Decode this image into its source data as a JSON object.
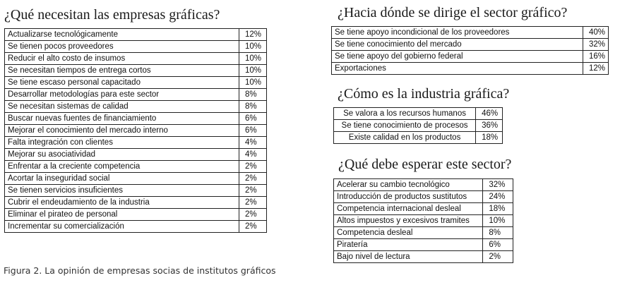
{
  "sections": [
    {
      "title": "¿Qué necesitan las empresas gráficas?",
      "rows": [
        {
          "label": "Actualizarse tecnológicamente",
          "value": "12%"
        },
        {
          "label": "Se tienen pocos proveedores",
          "value": "10%"
        },
        {
          "label": "Reducir el alto costo de insumos",
          "value": "10%"
        },
        {
          "label": "Se necesitan tiempos de entrega cortos",
          "value": "10%"
        },
        {
          "label": "Se tiene escaso personal capacitado",
          "value": "10%"
        },
        {
          "label": "Desarrollar metodologías para este sector",
          "value": "8%"
        },
        {
          "label": "Se necesitan sistemas de calidad",
          "value": "8%"
        },
        {
          "label": "Buscar nuevas fuentes de financiamiento",
          "value": "6%"
        },
        {
          "label": "Mejorar el conocimiento del mercado interno",
          "value": "6%"
        },
        {
          "label": "Falta integración con clientes",
          "value": "4%"
        },
        {
          "label": "Mejorar su asociatividad",
          "value": "4%"
        },
        {
          "label": "Enfrentar a la creciente competencia",
          "value": "2%"
        },
        {
          "label": "Acortar la inseguridad social",
          "value": "2%"
        },
        {
          "label": "Se tienen servicios insuficientes",
          "value": "2%"
        },
        {
          "label": "Cubrir el endeudamiento de la industria",
          "value": "2%"
        },
        {
          "label": "Eliminar el pirateo de personal",
          "value": "2%"
        },
        {
          "label": "Incrementar su comercialización",
          "value": "2%"
        }
      ]
    },
    {
      "title": "¿Hacia dónde se dirige el sector gráfico?",
      "rows": [
        {
          "label": "Se tiene apoyo incondicional de los proveedores",
          "value": "40%"
        },
        {
          "label": "Se tiene conocimiento del mercado",
          "value": "32%"
        },
        {
          "label": "Se tiene apoyo del gobierno federal",
          "value": "16%"
        },
        {
          "label": "Exportaciones",
          "value": "12%"
        }
      ]
    },
    {
      "title": "¿Cómo es la industria gráfica?",
      "rows": [
        {
          "label": "Se valora a los recursos humanos",
          "value": "46%"
        },
        {
          "label": "Se tiene conocimiento de procesos",
          "value": "36%"
        },
        {
          "label": "Existe calidad en los productos",
          "value": "18%"
        }
      ]
    },
    {
      "title": "¿Qué debe esperar este sector?",
      "rows": [
        {
          "label": "Acelerar su cambio tecnológico",
          "value": "32%"
        },
        {
          "label": "Introducción de productos sustitutos",
          "value": "24%"
        },
        {
          "label": "Competencia internacional desleal",
          "value": "18%"
        },
        {
          "label": "Altos impuestos y excesivos tramites",
          "value": "10%"
        },
        {
          "label": "Competencia desleal",
          "value": "8%"
        },
        {
          "label": "Piratería",
          "value": "6%"
        },
        {
          "label": "Bajo nivel de lectura",
          "value": "2%"
        }
      ]
    }
  ],
  "caption": "Figura 2. La opinión de empresas socias de institutos gráficos"
}
